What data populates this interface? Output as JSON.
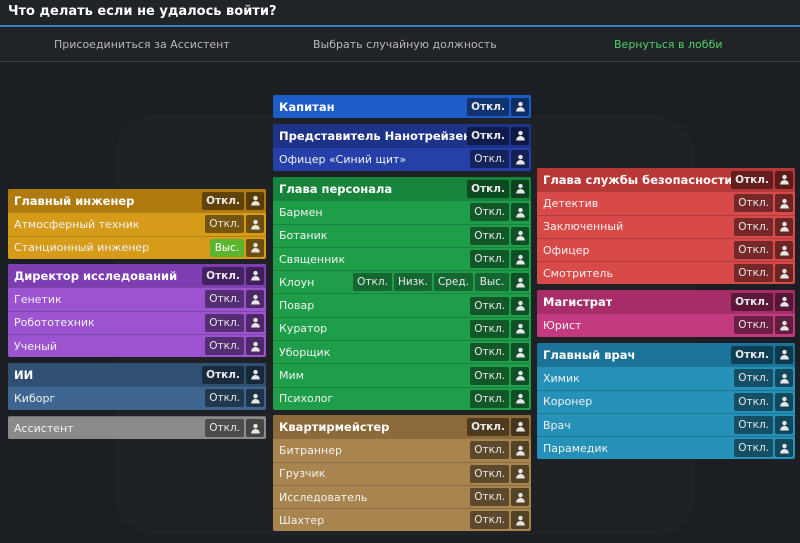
{
  "title": "Что делать если не удалось войти?",
  "nav": {
    "join_assistant": "Присоединиться за Ассистент",
    "random_job": "Выбрать случайную должность",
    "return_lobby": "Вернуться в лобби"
  },
  "icons": {
    "preview": "user-silhouette-icon"
  },
  "colors": {
    "engineering": "#d79b1a",
    "science": "#9b53cf",
    "ai": "#3f6690",
    "civilian": "#8a8a8a",
    "captain": "#1e5cc8",
    "nanotrasen": "#2540a8",
    "service": "#1f9e4a",
    "cargo": "#a8854f",
    "security": "#d84a4a",
    "law": "#c43a7e",
    "medical": "#2590b8",
    "nav_accent": "#4fd16a"
  },
  "departments": {
    "engineering": {
      "head": {
        "label": "Главный инженер",
        "pref": "Откл."
      },
      "jobs": [
        {
          "label": "Атмосферный техник",
          "pref": "Откл."
        },
        {
          "label": "Станционный инженер",
          "pref": "Выс."
        }
      ]
    },
    "science": {
      "head": {
        "label": "Директор исследований",
        "pref": "Откл."
      },
      "jobs": [
        {
          "label": "Генетик",
          "pref": "Откл."
        },
        {
          "label": "Робототехник",
          "pref": "Откл."
        },
        {
          "label": "Ученый",
          "pref": "Откл."
        }
      ]
    },
    "ai": {
      "head": {
        "label": "ИИ",
        "pref": "Откл."
      },
      "jobs": [
        {
          "label": "Киборг",
          "pref": "Откл."
        }
      ]
    },
    "civilian": {
      "jobs": [
        {
          "label": "Ассистент",
          "pref": "Откл."
        }
      ]
    },
    "captain": {
      "head": {
        "label": "Капитан",
        "pref": "Откл."
      }
    },
    "nanotrasen": {
      "head": {
        "label": "Представитель Нанотрейзен",
        "pref": "Откл."
      },
      "jobs": [
        {
          "label": "Офицер «Синий щит»",
          "pref": "Откл."
        }
      ]
    },
    "service": {
      "head": {
        "label": "Глава персонала",
        "pref": "Откл."
      },
      "jobs": [
        {
          "label": "Бармен",
          "pref": "Откл."
        },
        {
          "label": "Ботаник",
          "pref": "Откл."
        },
        {
          "label": "Священник",
          "pref": "Откл."
        },
        {
          "label": "Клоун",
          "options": [
            "Откл.",
            "Низк.",
            "Сред.",
            "Выс."
          ]
        },
        {
          "label": "Повар",
          "pref": "Откл."
        },
        {
          "label": "Куратор",
          "pref": "Откл."
        },
        {
          "label": "Уборщик",
          "pref": "Откл."
        },
        {
          "label": "Мим",
          "pref": "Откл."
        },
        {
          "label": "Психолог",
          "pref": "Откл."
        }
      ]
    },
    "cargo": {
      "head": {
        "label": "Квартирмейстер",
        "pref": "Откл."
      },
      "jobs": [
        {
          "label": "Битраннер",
          "pref": "Откл."
        },
        {
          "label": "Грузчик",
          "pref": "Откл."
        },
        {
          "label": "Исследователь",
          "pref": "Откл."
        },
        {
          "label": "Шахтер",
          "pref": "Откл."
        }
      ]
    },
    "security": {
      "head": {
        "label": "Глава службы безопасности",
        "pref": "Откл."
      },
      "jobs": [
        {
          "label": "Детектив",
          "pref": "Откл."
        },
        {
          "label": "Заключенный",
          "pref": "Откл."
        },
        {
          "label": "Офицер",
          "pref": "Откл."
        },
        {
          "label": "Смотритель",
          "pref": "Откл."
        }
      ]
    },
    "law": {
      "head": {
        "label": "Магистрат",
        "pref": "Откл."
      },
      "jobs": [
        {
          "label": "Юрист",
          "pref": "Откл."
        }
      ]
    },
    "medical": {
      "head": {
        "label": "Главный врач",
        "pref": "Откл."
      },
      "jobs": [
        {
          "label": "Химик",
          "pref": "Откл."
        },
        {
          "label": "Коронер",
          "pref": "Откл."
        },
        {
          "label": "Врач",
          "pref": "Откл."
        },
        {
          "label": "Парамедик",
          "pref": "Откл."
        }
      ]
    }
  }
}
